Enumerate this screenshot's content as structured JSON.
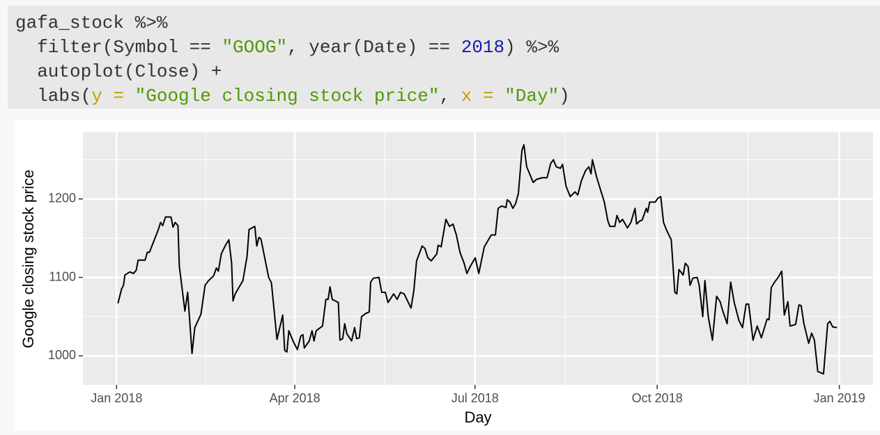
{
  "code": {
    "lines": [
      [
        {
          "text": "gafa_stock %>%",
          "color": "#333333"
        }
      ],
      [
        {
          "text": "  filter(Symbol == ",
          "color": "#333333"
        },
        {
          "text": "\"GOOG\"",
          "color": "#4e9a06"
        },
        {
          "text": ", year(Date) == ",
          "color": "#333333"
        },
        {
          "text": "2018",
          "color": "#1a1ab0"
        },
        {
          "text": ") %>%",
          "color": "#333333"
        }
      ],
      [
        {
          "text": "  autoplot(Close) +",
          "color": "#333333"
        }
      ],
      [
        {
          "text": "  labs(",
          "color": "#333333"
        },
        {
          "text": "y = ",
          "color": "#c4a000"
        },
        {
          "text": "\"Google closing stock price\"",
          "color": "#4e9a06"
        },
        {
          "text": ", ",
          "color": "#333333"
        },
        {
          "text": "x = ",
          "color": "#c4a000"
        },
        {
          "text": "\"Day\"",
          "color": "#4e9a06"
        },
        {
          "text": ")",
          "color": "#333333"
        }
      ]
    ]
  },
  "chart_data": {
    "type": "line",
    "xlabel": "Day",
    "ylabel": "Google closing stock price",
    "color": "#000000",
    "grid": true,
    "xlim": [
      -17,
      382
    ],
    "ylim": [
      963,
      1285
    ],
    "xticks": [
      {
        "value": 0,
        "label": "Jan 2018"
      },
      {
        "value": 90,
        "label": "Apr 2018"
      },
      {
        "value": 181,
        "label": "Jul 2018"
      },
      {
        "value": 273,
        "label": "Oct 2018"
      },
      {
        "value": 365,
        "label": "Jan 2019"
      }
    ],
    "xminorticks": [
      45,
      135.5,
      226.5,
      319
    ],
    "yticks": [
      1000,
      1100,
      1200
    ],
    "yminorticks": [
      1050,
      1150,
      1250
    ],
    "x": [
      0.7,
      2.5,
      3.5,
      4.2,
      6.7,
      8.5,
      9.9,
      10.9,
      14.4,
      15.5,
      16.6,
      21.1,
      22.2,
      23.3,
      24.7,
      27.5,
      28.5,
      29.6,
      31,
      31.7,
      34.5,
      35.9,
      38.1,
      39.5,
      42.6,
      44.7,
      46.5,
      49,
      50.4,
      51.4,
      52.9,
      55,
      56.7,
      58.1,
      58.8,
      59.9,
      63.8,
      65.9,
      66.9,
      69.8,
      70.8,
      71.9,
      72.9,
      76.8,
      78.2,
      81,
      83.9,
      84.9,
      86,
      87,
      89.1,
      91.3,
      93,
      94.1,
      94.8,
      97.3,
      98.7,
      99.7,
      100.8,
      104,
      105.7,
      106.8,
      107.8,
      108.9,
      112,
      112.8,
      114.2,
      115.2,
      116.3,
      118.7,
      120.2,
      121.2,
      122.6,
      123.7,
      125.8,
      127.6,
      128.3,
      129.7,
      132.5,
      133.9,
      135.7,
      137.1,
      139.9,
      141.7,
      143.4,
      145.2,
      148.7,
      150.1,
      151.5,
      154.3,
      155.7,
      157.2,
      158.9,
      161.7,
      162.4,
      163.9,
      166.3,
      168.1,
      169.9,
      171.6,
      173.4,
      175.5,
      176.9,
      178.6,
      181.1,
      182.9,
      185.7,
      189.2,
      191.3,
      192.7,
      194.5,
      196.6,
      197.3,
      198.7,
      200.1,
      201.5,
      202.9,
      203.6,
      204.7,
      205.7,
      207.1,
      210.4,
      212.1,
      214.9,
      217.4,
      219.2,
      220.6,
      222,
      224.1,
      225.2,
      227,
      229.1,
      231.5,
      232.9,
      234.7,
      236.8,
      238.5,
      239.6,
      240.3,
      242.4,
      246.3,
      248.1,
      249.1,
      251.6,
      252.7,
      254.1,
      255.5,
      258,
      259.7,
      261.8,
      262.6,
      264.3,
      265.4,
      267.5,
      268.2,
      269.2,
      272,
      273.4,
      274.8,
      276.2,
      277.6,
      280.1,
      281.9,
      282.9,
      284,
      286.1,
      287.2,
      288.6,
      289.6,
      291,
      293.2,
      294.2,
      296,
      297.1,
      298.8,
      300.9,
      303,
      304.8,
      305.9,
      308.3,
      310.1,
      311.9,
      314.3,
      316.1,
      317.9,
      319.2,
      321.4,
      323.5,
      325.6,
      328.5,
      329.5,
      330.6,
      332.3,
      334.1,
      335.9,
      337.2,
      339,
      340.1,
      342.9,
      344.6,
      345.7,
      347.1,
      349.5,
      351,
      352.4,
      354.1,
      357,
      359.1,
      360.2,
      361.6,
      363.8
    ],
    "values": [
      1067,
      1085,
      1090,
      1103,
      1107,
      1105,
      1109,
      1122,
      1122,
      1132,
      1132,
      1161,
      1170,
      1166,
      1177,
      1177,
      1164,
      1170,
      1166,
      1114,
      1057,
      1081,
      1003,
      1036,
      1053,
      1090,
      1096,
      1102,
      1112,
      1108,
      1130,
      1141,
      1148,
      1118,
      1070,
      1079,
      1096,
      1127,
      1161,
      1165,
      1140,
      1151,
      1149,
      1100,
      1093,
      1021,
      1052,
      1007,
      1005,
      1032,
      1019,
      1008,
      1025,
      1027,
      1010,
      1019,
      1032,
      1019,
      1032,
      1038,
      1072,
      1072,
      1088,
      1072,
      1068,
      1020,
      1022,
      1041,
      1028,
      1019,
      1036,
      1022,
      1023,
      1050,
      1054,
      1056,
      1094,
      1099,
      1100,
      1081,
      1081,
      1068,
      1079,
      1072,
      1081,
      1079,
      1061,
      1083,
      1121,
      1140,
      1137,
      1125,
      1121,
      1130,
      1141,
      1139,
      1174,
      1165,
      1168,
      1154,
      1132,
      1118,
      1105,
      1114,
      1125,
      1105,
      1139,
      1154,
      1154,
      1188,
      1191,
      1189,
      1199,
      1196,
      1188,
      1194,
      1207,
      1228,
      1262,
      1269,
      1241,
      1221,
      1225,
      1227,
      1227,
      1245,
      1250,
      1241,
      1239,
      1244,
      1216,
      1203,
      1209,
      1205,
      1223,
      1236,
      1241,
      1232,
      1250,
      1228,
      1196,
      1172,
      1165,
      1165,
      1179,
      1170,
      1174,
      1163,
      1170,
      1188,
      1168,
      1172,
      1173,
      1188,
      1183,
      1196,
      1196,
      1201,
      1203,
      1170,
      1161,
      1148,
      1081,
      1079,
      1110,
      1103,
      1118,
      1114,
      1090,
      1099,
      1100,
      1090,
      1050,
      1096,
      1050,
      1020,
      1076,
      1069,
      1059,
      1041,
      1094,
      1068,
      1045,
      1036,
      1066,
      1066,
      1020,
      1038,
      1023,
      1047,
      1046,
      1087,
      1094,
      1100,
      1108,
      1052,
      1069,
      1038,
      1040,
      1065,
      1064,
      1041,
      1016,
      1029,
      1020,
      980,
      977,
      1041,
      1044,
      1037,
      1036
    ]
  }
}
